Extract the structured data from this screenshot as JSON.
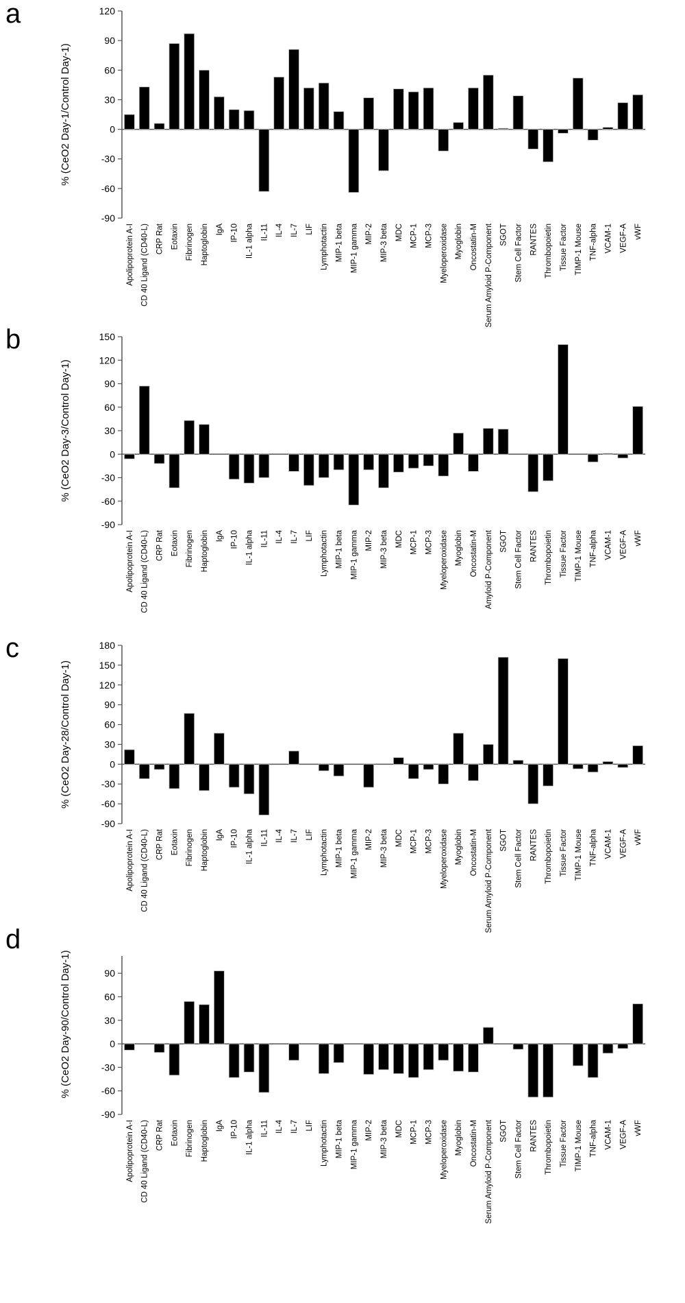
{
  "chart_data": [
    {
      "type": "bar",
      "panel_letter": "a",
      "ylabel": "%  (CeO2 Day-1/Control Day-1)",
      "ylim": [
        -90,
        120
      ],
      "yticks": [
        120,
        90,
        60,
        30,
        0,
        -30,
        -60,
        -90
      ],
      "categories": [
        "Apolipoprotein A-I",
        "CD 40 Ligand (CD40-L)",
        "CRP Rat",
        "Eotaxin",
        "Fibrinogen",
        "Haptoglobin",
        "IgA",
        "IP-10",
        "IL-1 alpha",
        "IL-11",
        "IL-4",
        "IL-7",
        "LIF",
        "Lymphotactin",
        "MIP-1 beta",
        "MIP-1 gamma",
        "MIP-2",
        "MIP-3 beta",
        "MDC",
        "MCP-1",
        "MCP-3",
        "Myeloperoxidase",
        "Myoglobin",
        "Oncostatin-M",
        "Serum Amyloid P-Component",
        "SGOT",
        "Stem Cell Factor",
        "RANTES",
        "Thrombopoietin",
        "Tissue Factor",
        "TIMP-1 Mouse",
        "TNF-alpha",
        "VCAM-1",
        "VEGF-A",
        "vWF"
      ],
      "values": [
        15,
        43,
        6,
        87,
        97,
        60,
        33,
        20,
        19,
        -63,
        53,
        81,
        42,
        47,
        18,
        -64,
        32,
        -42,
        41,
        38,
        42,
        -22,
        7,
        42,
        55,
        1,
        34,
        -20,
        -33,
        -4,
        52,
        -11,
        2,
        27,
        35
      ]
    },
    {
      "type": "bar",
      "panel_letter": "b",
      "ylabel": "%  (CeO2 Day-3/Control Day-1)",
      "ylim": [
        -90,
        150
      ],
      "yticks": [
        150,
        120,
        90,
        60,
        30,
        0,
        -30,
        -60,
        -90
      ],
      "categories": [
        "Apolipoprotein A-I",
        "CD 40 Ligand (CD40-L)",
        "CRP Rat",
        "Eotaxin",
        "Fibrinogen",
        "Haptoglobin",
        "IgA",
        "IP-10",
        "IL-1 alpha",
        "IL-11",
        "IL-4",
        "IL-7",
        "LIF",
        "Lymphotactin",
        "MIP-1 beta",
        "MIP-1 gamma",
        "MIP-2",
        "MIP-3 beta",
        "MDC",
        "MCP-1",
        "MCP-3",
        "Myeloperoxidase",
        "Myoglobin",
        "Oncostatin-M",
        "Amyloid P-Component",
        "SGOT",
        "Stem Cell Factor",
        "RANTES",
        "Thrombopoietin",
        "Tissue Factor",
        "TIMP-1 Mouse",
        "TNF-alpha",
        "VCAM-1",
        "VEGF-A",
        "vWF"
      ],
      "values": [
        -6,
        87,
        -12,
        -43,
        43,
        38,
        0,
        -32,
        -37,
        -30,
        0,
        -22,
        -40,
        -30,
        -20,
        -65,
        -20,
        -43,
        -23,
        -18,
        -15,
        -28,
        27,
        -22,
        33,
        32,
        0,
        -48,
        -34,
        140,
        0,
        -10,
        1,
        -5,
        61
      ]
    },
    {
      "type": "bar",
      "panel_letter": "c",
      "ylabel": "%  (CeO2 Day-28/Control Day-1)",
      "ylim": [
        -90,
        180
      ],
      "yticks": [
        180,
        150,
        120,
        90,
        60,
        30,
        0,
        -30,
        -60,
        -90
      ],
      "categories": [
        "Apolipoprotein A-I",
        "CD 40 Ligand (CD40-L)",
        "CRP Rat",
        "Eotaxin",
        "Fibrinogen",
        "Haptoglobin",
        "IgA",
        "IP-10",
        "IL-1 alpha",
        "IL-11",
        "IL-4",
        "IL-7",
        "LIF",
        "Lymphotactin",
        "MIP-1 beta",
        "MIP-1 gamma",
        "MIP-2",
        "MIP-3 beta",
        "MDC",
        "MCP-1",
        "MCP-3",
        "Myeloperoxidase",
        "Myoglobin",
        "Oncostatin-M",
        "Serum Amyloid P-Component",
        "SGOT",
        "Stem Cell Factor",
        "RANTES",
        "Thrombopoietin",
        "Tissue Factor",
        "TIMP-1 Mouse",
        "TNF-alpha",
        "VCAM-1",
        "VEGF-A",
        "vWF"
      ],
      "values": [
        22,
        -22,
        -8,
        -37,
        77,
        -40,
        47,
        -35,
        -45,
        -77,
        0,
        20,
        0,
        -10,
        -18,
        0,
        -35,
        0,
        10,
        -22,
        -8,
        -30,
        47,
        -25,
        30,
        162,
        6,
        -60,
        -33,
        160,
        -7,
        -12,
        4,
        -5,
        28
      ]
    },
    {
      "type": "bar",
      "panel_letter": "d",
      "ylabel": "%  (CeO2 Day-90/Control Day-1)",
      "ylim": [
        -90,
        105
      ],
      "yticks": [
        90,
        60,
        30,
        0,
        -30,
        -60,
        -90
      ],
      "categories": [
        "Apolipoprotein A-I",
        "CD 40 Ligand (CD40-L)",
        "CRP Rat",
        "Eotaxin",
        "Fibrinogen",
        "Haptoglobin",
        "IgA",
        "IP-10",
        "IL-1 alpha",
        "IL-11",
        "IL-4",
        "IL-7",
        "LIF",
        "Lymphotactin",
        "MIP-1 beta",
        "MIP-1 gamma",
        "MIP-2",
        "MIP-3 beta",
        "MDC",
        "MCP-1",
        "MCP-3",
        "Myeloperoxidase",
        "Myoglobin",
        "Oncostatin-M",
        "Serum Amyloid P-Component",
        "SGOT",
        "Stem Cell Factor",
        "RANTES",
        "Thrombopoietin",
        "Tissue Factor",
        "TIMP-1 Mouse",
        "TNF-alpha",
        "VCAM-1",
        "VEGF-A",
        "vWF"
      ],
      "values": [
        -8,
        0,
        -11,
        -40,
        54,
        50,
        93,
        -43,
        -36,
        -62,
        0,
        -21,
        0,
        -38,
        -24,
        0,
        -39,
        -33,
        -38,
        -43,
        -33,
        -21,
        -35,
        -36,
        21,
        0,
        -7,
        -68,
        -68,
        0,
        -28,
        -43,
        -12,
        -6,
        51
      ]
    }
  ]
}
